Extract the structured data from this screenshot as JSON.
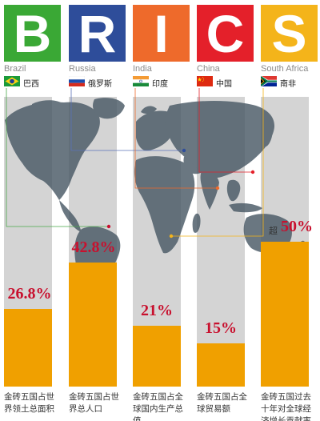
{
  "colors": {
    "brazil": "#3aa835",
    "russia": "#2e4d9a",
    "india": "#ee6a2b",
    "china": "#e4202a",
    "south_africa": "#f4b41a",
    "bar": "#f0a000",
    "column": "#d4d4d4",
    "value_text": "#c8102e",
    "map": "#4a5a66"
  },
  "chart_data": {
    "type": "bar",
    "categories": [
      "Brazil",
      "Russia",
      "India",
      "China",
      "South Africa"
    ],
    "values": [
      26.8,
      42.8,
      21,
      15,
      50
    ],
    "value_labels": [
      "26.8%",
      "42.8%",
      "21%",
      "15%",
      "50%"
    ],
    "ylim": [
      0,
      100
    ],
    "value_prefix": {
      "South Africa": "超"
    }
  },
  "countries": [
    {
      "letter": "B",
      "name_en": "Brazil",
      "name_zh": "巴西",
      "caption": "金砖五国占世界领土总面积"
    },
    {
      "letter": "R",
      "name_en": "Russia",
      "name_zh": "俄罗斯",
      "caption": "金砖五国占世界总人口"
    },
    {
      "letter": "I",
      "name_en": "India",
      "name_zh": "印度",
      "caption": "金砖五国占全球国内生产总值"
    },
    {
      "letter": "C",
      "name_en": "China",
      "name_zh": "中国",
      "caption": "金砖五国占全球贸易额"
    },
    {
      "letter": "S",
      "name_en": "South Africa",
      "name_zh": "南非",
      "caption": "金砖五国过去十年对全球经济增长贡献率"
    }
  ]
}
